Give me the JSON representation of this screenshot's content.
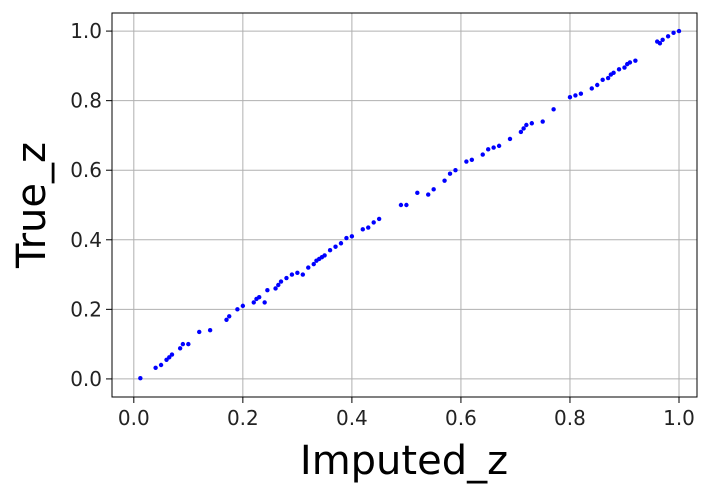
{
  "chart_data": {
    "type": "scatter",
    "x_label": "Imputed_z",
    "y_label": "True_z",
    "x": [
      0.012,
      0.04,
      0.05,
      0.06,
      0.065,
      0.07,
      0.085,
      0.09,
      0.1,
      0.12,
      0.14,
      0.17,
      0.175,
      0.19,
      0.2,
      0.22,
      0.225,
      0.23,
      0.24,
      0.245,
      0.26,
      0.265,
      0.27,
      0.28,
      0.29,
      0.3,
      0.31,
      0.32,
      0.33,
      0.335,
      0.34,
      0.345,
      0.35,
      0.36,
      0.37,
      0.38,
      0.39,
      0.4,
      0.42,
      0.43,
      0.44,
      0.45,
      0.49,
      0.5,
      0.52,
      0.54,
      0.55,
      0.57,
      0.58,
      0.59,
      0.61,
      0.62,
      0.64,
      0.65,
      0.66,
      0.67,
      0.69,
      0.71,
      0.715,
      0.72,
      0.73,
      0.75,
      0.77,
      0.8,
      0.81,
      0.82,
      0.84,
      0.85,
      0.86,
      0.87,
      0.875,
      0.88,
      0.89,
      0.9,
      0.905,
      0.91,
      0.92,
      0.96,
      0.965,
      0.97,
      0.98,
      0.99,
      1.0
    ],
    "values": [
      0.002,
      0.032,
      0.04,
      0.055,
      0.062,
      0.07,
      0.088,
      0.1,
      0.1,
      0.135,
      0.14,
      0.17,
      0.18,
      0.2,
      0.21,
      0.22,
      0.23,
      0.235,
      0.22,
      0.255,
      0.26,
      0.27,
      0.28,
      0.29,
      0.3,
      0.305,
      0.3,
      0.32,
      0.33,
      0.34,
      0.345,
      0.35,
      0.355,
      0.37,
      0.38,
      0.39,
      0.405,
      0.41,
      0.43,
      0.435,
      0.45,
      0.46,
      0.5,
      0.5,
      0.535,
      0.53,
      0.545,
      0.57,
      0.59,
      0.6,
      0.625,
      0.63,
      0.645,
      0.66,
      0.665,
      0.67,
      0.69,
      0.71,
      0.72,
      0.73,
      0.735,
      0.74,
      0.775,
      0.81,
      0.815,
      0.82,
      0.835,
      0.845,
      0.86,
      0.865,
      0.875,
      0.88,
      0.89,
      0.895,
      0.905,
      0.91,
      0.915,
      0.97,
      0.965,
      0.975,
      0.985,
      0.995,
      1.0
    ],
    "color": "#0000ff",
    "xlim": [
      -0.04,
      1.033
    ],
    "ylim": [
      -0.052,
      1.052
    ],
    "xticks": [
      {
        "value": 0,
        "label": "0.0"
      },
      0.2,
      0.4,
      0.6,
      0.8,
      {
        "value": 1,
        "label": "1.0"
      }
    ],
    "yticks": [
      {
        "value": 0,
        "label": "0.0"
      },
      0.2,
      0.4,
      0.6,
      0.8,
      {
        "value": 1,
        "label": "1.0"
      }
    ],
    "grid": true
  }
}
